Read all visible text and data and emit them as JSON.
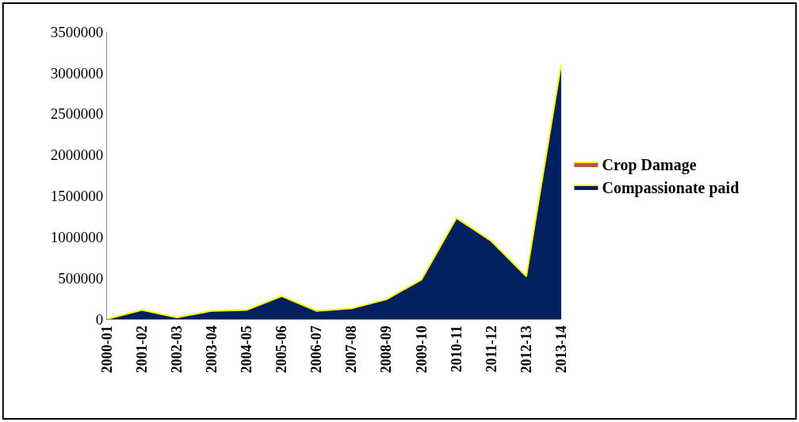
{
  "chart_data": {
    "type": "area",
    "categories": [
      "2000-01",
      "2001-02",
      "2002-03",
      "2003-04",
      "2004-05",
      "2005-06",
      "2006-07",
      "2007-08",
      "2008-09",
      "2009-10",
      "2010-11",
      "2011-12",
      "2012-13",
      "2013-14"
    ],
    "series": [
      {
        "name": "Crop Damage",
        "color": "#c0504d",
        "values": [
          null,
          null,
          null,
          null,
          null,
          null,
          null,
          null,
          null,
          null,
          null,
          null,
          null,
          null
        ]
      },
      {
        "name": "Compassionate paid",
        "color": "#002060",
        "values": [
          0,
          110000,
          20000,
          100000,
          110000,
          280000,
          100000,
          130000,
          240000,
          480000,
          1230000,
          950000,
          520000,
          3110000
        ]
      }
    ],
    "ylim": [
      0,
      3500000
    ],
    "yticks": [
      0,
      500000,
      1000000,
      1500000,
      2000000,
      2500000,
      3000000,
      3500000
    ],
    "legend": "right"
  }
}
